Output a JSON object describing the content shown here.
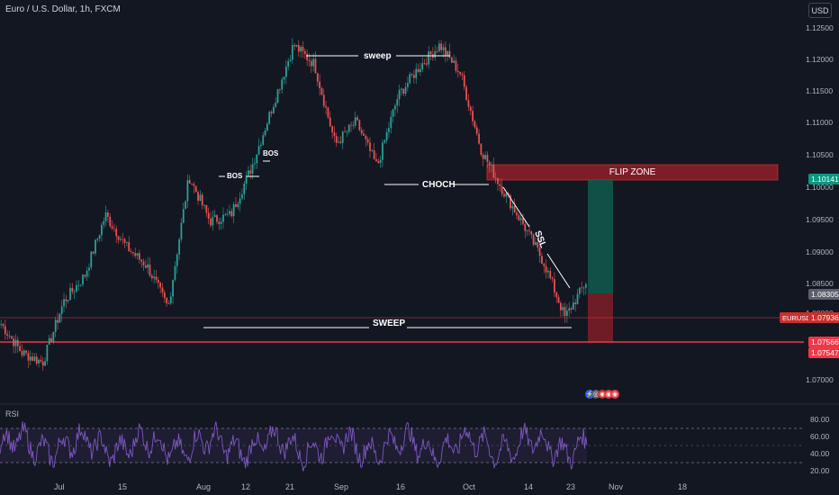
{
  "symbol_title": "Euro / U.S. Dollar, 1h, FXCM",
  "currency": "USD",
  "price_axis": [
    "1.12500",
    "1.12000",
    "1.11500",
    "1.11000",
    "1.10500",
    "1.10000",
    "1.09500",
    "1.09000",
    "1.08500",
    "1.08000",
    "1.07000"
  ],
  "price_tags": {
    "zone_top": "1.10141",
    "current": "1.08305",
    "eurusd": "1.07936",
    "line_a": "1.07566",
    "line_b": "1.07547"
  },
  "symbol_tag": "EURUSD",
  "date_axis": [
    "Jul",
    "15",
    "Aug",
    "12",
    "21",
    "Sep",
    "16",
    "Oct",
    "14",
    "23",
    "Nov",
    "18"
  ],
  "annotations": {
    "sweep_top": "sweep",
    "bos1": "BOS",
    "bos2": "BOS",
    "choch": "CHOCH",
    "flip_zone": "FLIP ZONE",
    "sweep_bottom": "SWEEP",
    "ssl": "SSL"
  },
  "rsi": {
    "title": "RSI",
    "levels": [
      "80.00",
      "60.00",
      "40.00",
      "20.00"
    ]
  },
  "colors": {
    "bg": "#131722",
    "up": "#26a69a",
    "down": "#ef5350",
    "rsi": "#7e57c2",
    "red_line": "#f23645",
    "zone_red": "#7f1d26",
    "zone_green": "#0f5c4e"
  },
  "chart_data": {
    "type": "candlestick",
    "ylim": [
      1.064,
      1.127
    ],
    "path_points": [
      {
        "date": "Jun 24",
        "close": 1.0765
      },
      {
        "date": "Jun 28",
        "close": 1.072
      },
      {
        "date": "Jul 3",
        "close": 1.0705
      },
      {
        "date": "Jul 8",
        "close": 1.08
      },
      {
        "date": "Jul 12",
        "close": 1.084
      },
      {
        "date": "Jul 17",
        "close": 1.0935
      },
      {
        "date": "Jul 22",
        "close": 1.0885
      },
      {
        "date": "Jul 26",
        "close": 1.0855
      },
      {
        "date": "Aug 1",
        "close": 1.079
      },
      {
        "date": "Aug 5",
        "close": 1.0995
      },
      {
        "date": "Aug 8",
        "close": 1.0925
      },
      {
        "date": "Aug 12",
        "close": 1.0935
      },
      {
        "date": "Aug 16",
        "close": 1.101
      },
      {
        "date": "Aug 20",
        "close": 1.1105
      },
      {
        "date": "Aug 23",
        "close": 1.12
      },
      {
        "date": "Aug 27",
        "close": 1.117
      },
      {
        "date": "Sep 3",
        "close": 1.1045
      },
      {
        "date": "Sep 6",
        "close": 1.108
      },
      {
        "date": "Sep 11",
        "close": 1.101
      },
      {
        "date": "Sep 16",
        "close": 1.112
      },
      {
        "date": "Sep 20",
        "close": 1.1165
      },
      {
        "date": "Sep 25",
        "close": 1.12
      },
      {
        "date": "Sep 30",
        "close": 1.1155
      },
      {
        "date": "Oct 3",
        "close": 1.1035
      },
      {
        "date": "Oct 8",
        "close": 1.0975
      },
      {
        "date": "Oct 14",
        "close": 1.092
      },
      {
        "date": "Oct 18",
        "close": 1.086
      },
      {
        "date": "Oct 23",
        "close": 1.0775
      },
      {
        "date": "Oct 25",
        "close": 1.083
      }
    ],
    "flip_zone": [
      1.1005,
      1.1034
    ],
    "sweep_level": 1.0784,
    "support_level": 1.0757,
    "long_position": {
      "entry": 1.083,
      "target": 1.1014,
      "stop": 1.0757
    },
    "rsi_range": [
      20,
      80
    ]
  }
}
